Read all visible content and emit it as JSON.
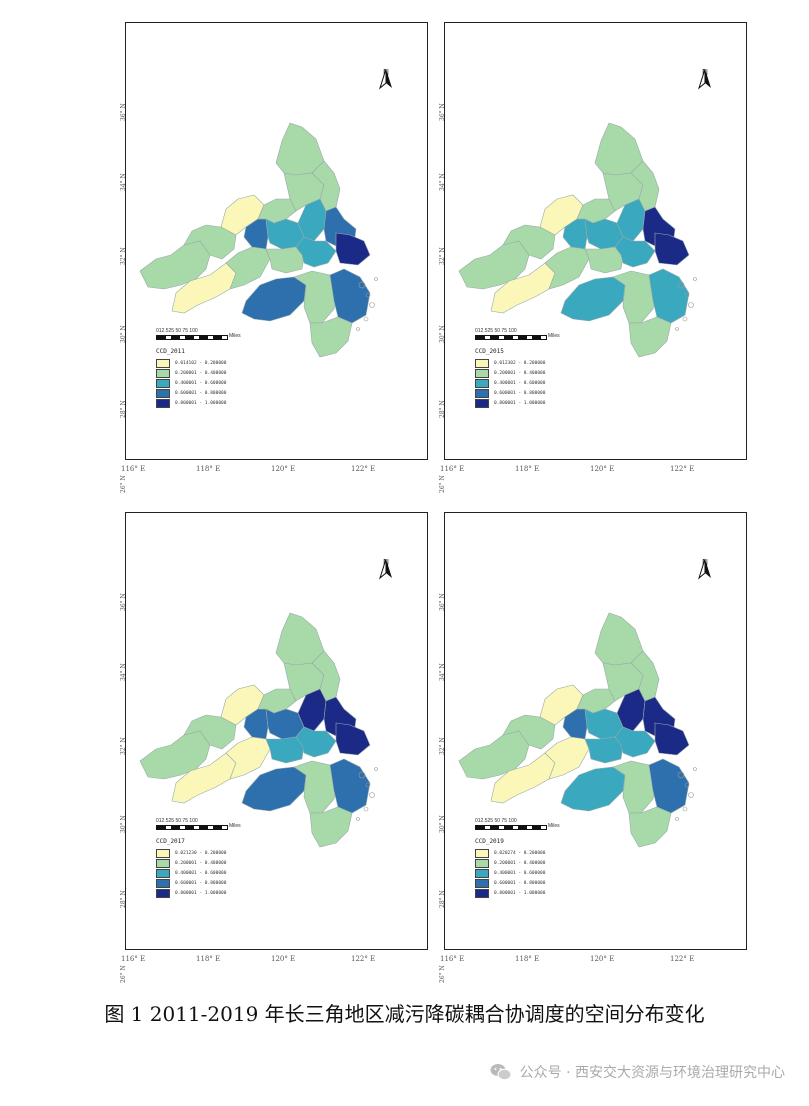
{
  "panels": [
    {
      "legend_title": "CCD_2011",
      "legend_first": "0.014102 - 0.200000"
    },
    {
      "legend_title": "CCD_2015",
      "legend_first": "0.012302 - 0.200000"
    },
    {
      "legend_title": "CCD_2017",
      "legend_first": "0.021230 - 0.200000"
    },
    {
      "legend_title": "CCD_2019",
      "legend_first": "0.020274 - 0.200000"
    }
  ],
  "legend_ranges": [
    "0.200001 - 0.400000",
    "0.400001 - 0.600000",
    "0.600001 - 0.800000",
    "0.800001 - 1.000000"
  ],
  "legend_colors": [
    "#fbf7b8",
    "#a8d9a8",
    "#3aa8bf",
    "#2e6fae",
    "#1c2a87"
  ],
  "scale": {
    "nums": "012.525   50    75   100",
    "units": "Miles"
  },
  "north_label": "N",
  "lat_labels": [
    "36° N",
    "34° N",
    "32° N",
    "30° N",
    "28° N",
    "26° N"
  ],
  "lon_labels": [
    "116° E",
    "118° E",
    "120° E",
    "122° E"
  ],
  "caption": "图 1 2011-2019 年长三角地区减污降碳耦合协调度的空间分布变化",
  "footer": "公众号 · 西安交大资源与环境治理研究中心",
  "region_classes": [
    [
      1,
      1,
      0,
      3,
      1,
      1,
      1,
      1,
      2,
      2,
      3,
      4,
      0,
      1,
      1,
      2,
      3,
      1,
      3,
      1
    ],
    [
      1,
      1,
      0,
      2,
      1,
      1,
      1,
      1,
      2,
      2,
      4,
      4,
      0,
      1,
      1,
      2,
      2,
      1,
      2,
      1
    ],
    [
      1,
      1,
      0,
      3,
      1,
      1,
      1,
      1,
      3,
      4,
      4,
      4,
      0,
      0,
      2,
      2,
      3,
      1,
      3,
      1
    ],
    [
      1,
      1,
      0,
      3,
      1,
      1,
      1,
      1,
      2,
      4,
      4,
      4,
      0,
      0,
      2,
      2,
      2,
      1,
      3,
      1
    ]
  ]
}
